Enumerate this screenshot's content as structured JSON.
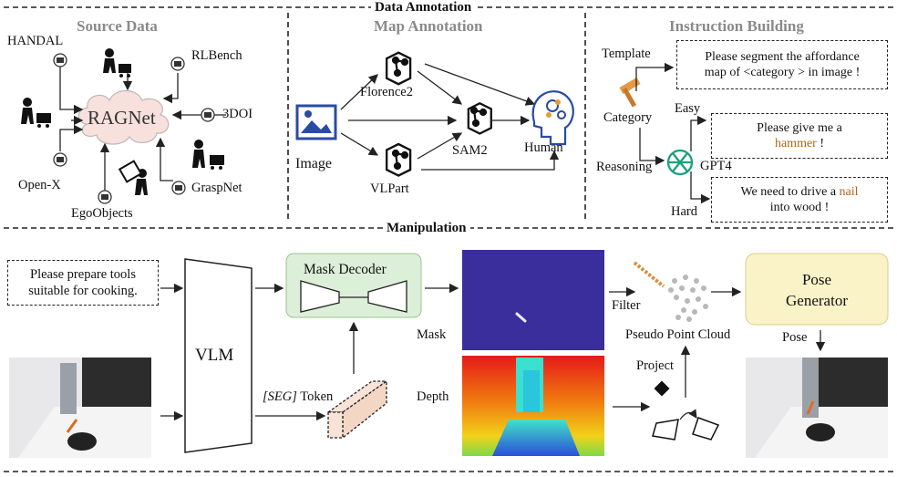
{
  "headers": {
    "data_annotation": "Data Annotation",
    "manipulation": "Manipulation"
  },
  "source_data": {
    "title": "Source Data",
    "center": "RAGNet",
    "sources": [
      "HANDAL",
      "RLBench",
      "3DOI",
      "GraspNet",
      "EgoObjects",
      "Open-X"
    ]
  },
  "map_annotation": {
    "title": "Map Annotation",
    "input": "Image",
    "models": [
      "Florence2",
      "SAM2",
      "VLPart"
    ],
    "output": "Human"
  },
  "instruction_building": {
    "title": "Instruction Building",
    "template_label": "Template",
    "category_label": "Category",
    "reasoning_label": "Reasoning",
    "easy_label": "Easy",
    "hard_label": "Hard",
    "gpt_label": "GPT4",
    "template_text": [
      "Please segment the affordance",
      "map of <category > in image !"
    ],
    "easy_text": {
      "line1": "Please give me a",
      "highlight": "hammer",
      "suffix": " !"
    },
    "hard_text": {
      "prefix": "We need to drive a ",
      "highlight": "nail",
      "line2": "into wood !"
    },
    "highlight_color": "#b0651e"
  },
  "manipulation": {
    "instruction": [
      "Please prepare tools",
      "suitable for cooking."
    ],
    "vlm": "VLM",
    "mask_decoder": "Mask Decoder",
    "seg_token_italic": "[SEG]",
    "seg_token_suffix": " Token",
    "mask_label": "Mask",
    "depth_label": "Depth",
    "filter_label": "Filter",
    "project_label": "Project",
    "point_cloud_label": "Pseudo Point Cloud",
    "pose_generator": [
      "Pose",
      "Generator"
    ],
    "pose_label": "Pose"
  },
  "colors": {
    "mask_decoder_fill": "#dcefd8",
    "pose_generator_fill": "#fbf3c8",
    "token_fill": "#f8e3d6",
    "mask_bg": "#3a2e9c",
    "icon_blue": "#2a4aa6"
  }
}
